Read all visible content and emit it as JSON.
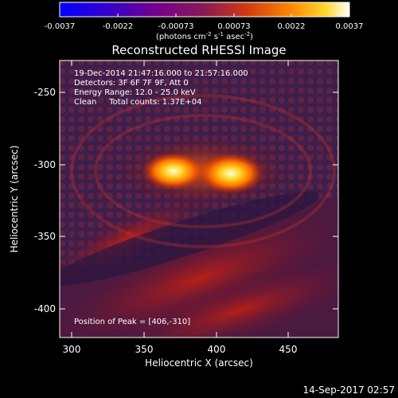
{
  "colorbar": {
    "tick_labels": [
      "-0.0037",
      "-0.0022",
      "-0.00073",
      "0.00073",
      "0.0022",
      "0.0037"
    ],
    "units_text": "(photons cm",
    "units_sup1": "-2",
    "units_mid": " s",
    "units_sup2": "-1",
    "units_end": " asec",
    "units_sup3": "-2",
    "units_close": ")"
  },
  "image": {
    "title": "Reconstructed RHESSI Image",
    "time_range": "19-Dec-2014 21:47:16.000 to 21:57:16.000",
    "detectors": "Detectors: 3F 6F 7F 9F, Att 0",
    "energy_range": "Energy Range: 12.0 - 25.0 keV",
    "method_counts": "Clean     Total counts: 1.37E+04",
    "peak_position": "Position of Peak = [406,-310]",
    "xlabel": "Heliocentric X (arcsec)",
    "ylabel": "Heliocentric Y (arcsec)",
    "x_ticks": [
      "300",
      "350",
      "400",
      "450"
    ],
    "y_ticks": [
      "-250",
      "-300",
      "-350",
      "-400"
    ],
    "xlim": [
      291,
      485
    ],
    "ylim": [
      -420,
      -228
    ]
  },
  "footer": {
    "timestamp": "14-Sep-2017 02:57"
  }
}
